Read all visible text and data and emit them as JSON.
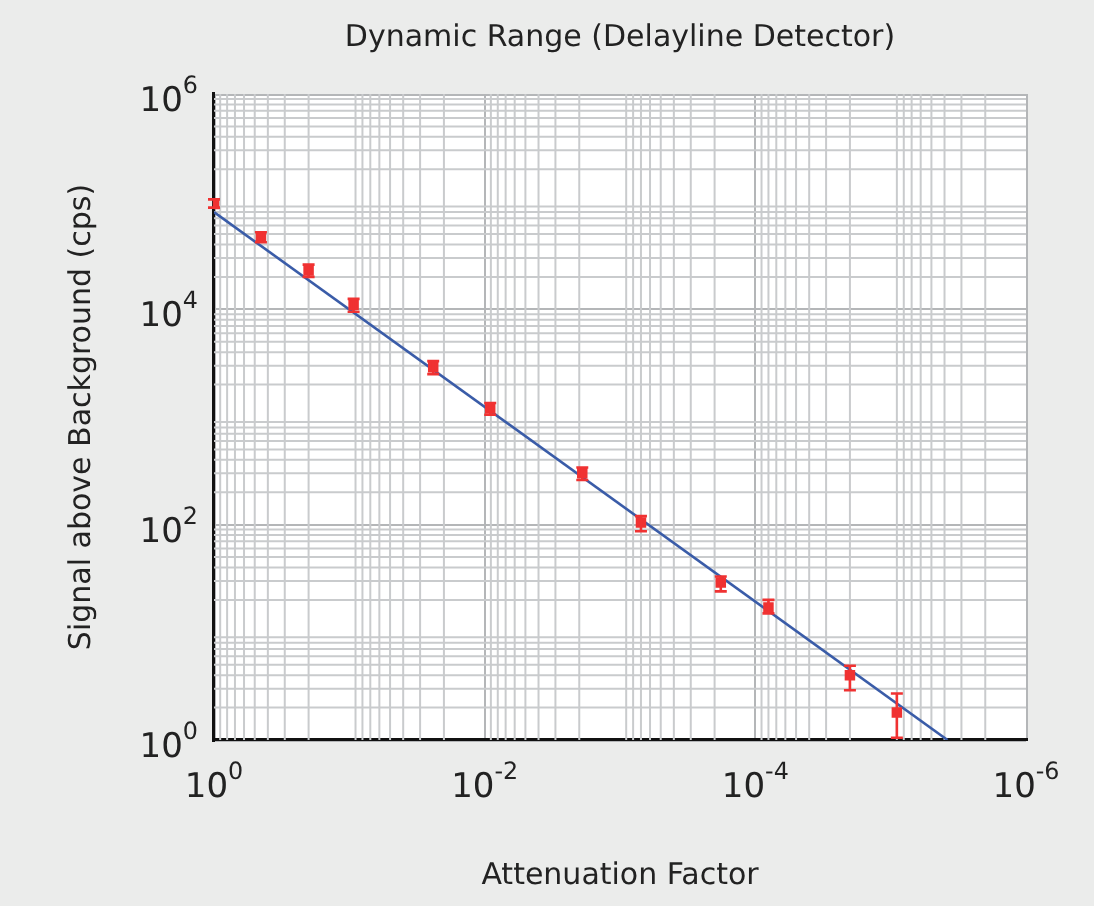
{
  "chart_data": {
    "type": "scatter",
    "title": "Dynamic Range (Delayline Detector)",
    "xlabel": "Attenuation Factor",
    "ylabel": "Signal above Background (cps)",
    "log": "xy",
    "xlim": [
      1,
      1e-06
    ],
    "ylim": [
      1,
      1000000
    ],
    "xticks": [
      {
        "value": 1,
        "label": "10$^{0}$"
      },
      {
        "value": 0.01,
        "label": "10$^{-2}$"
      },
      {
        "value": 0.0001,
        "label": "10$^{-4}$"
      },
      {
        "value": 1e-06,
        "label": "10$^{-6}$"
      }
    ],
    "yticks": [
      {
        "value": 1,
        "label": "10$^{0}$"
      },
      {
        "value": 100,
        "label": "10$^{2}$"
      },
      {
        "value": 10000,
        "label": "10$^{4}$"
      },
      {
        "value": 1000000,
        "label": "10$^{6}$"
      }
    ],
    "grid": true,
    "marker": "square",
    "legend": false,
    "series": [
      {
        "type": "scatter",
        "color": "#f03232",
        "x": [
          1,
          0.45,
          0.2,
          0.093,
          0.024,
          0.0091,
          0.0019,
          0.0007,
          0.00018,
          8e-05,
          2e-05,
          9e-06
        ],
        "values": [
          95000,
          47000,
          23000,
          11000,
          2900,
          1200,
          300,
          105,
          29,
          17,
          4,
          1.8
        ],
        "errors": [
          [
            88000,
            105000
          ],
          [
            42000,
            52000
          ],
          [
            20000,
            26000
          ],
          [
            9500,
            12500
          ],
          [
            2500,
            3300
          ],
          [
            1050,
            1350
          ],
          [
            260,
            340
          ],
          [
            87,
            120
          ],
          [
            24,
            33
          ],
          [
            15,
            20
          ],
          [
            2.9,
            4.9
          ],
          [
            1.05,
            2.7
          ]
        ]
      },
      {
        "type": "line",
        "color": "#3a5ca8",
        "marker": "none",
        "x": [
          1,
          3.8e-06
        ],
        "values": [
          80000,
          1
        ]
      }
    ]
  }
}
